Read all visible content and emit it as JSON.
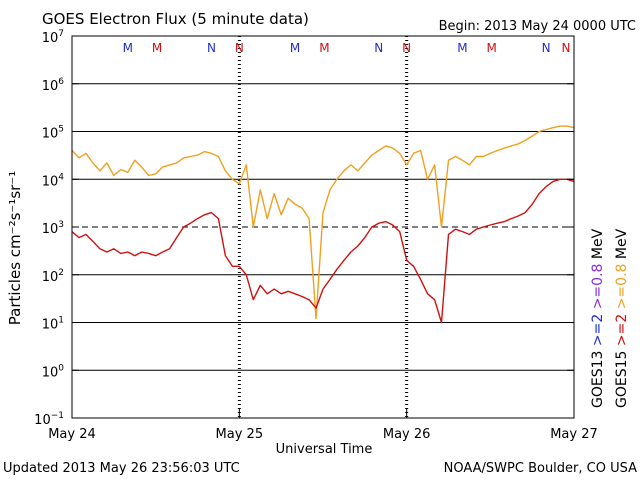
{
  "chart_data": {
    "type": "line",
    "title": "GOES Electron Flux (5 minute data)",
    "begin_label": "Begin: 2013 May 24 0000 UTC",
    "xlabel": "Universal Time",
    "ylabel": "Particles cm⁻²s⁻¹sr⁻¹",
    "y_scale": "log",
    "ylim": [
      0.1,
      10000000
    ],
    "y_ticks": [
      {
        "base": "10",
        "exp": "7"
      },
      {
        "base": "10",
        "exp": "6"
      },
      {
        "base": "10",
        "exp": "5"
      },
      {
        "base": "10",
        "exp": "4"
      },
      {
        "base": "10",
        "exp": "3"
      },
      {
        "base": "10",
        "exp": "2"
      },
      {
        "base": "10",
        "exp": "1"
      },
      {
        "base": "10",
        "exp": "0"
      },
      {
        "base": "10",
        "exp": "−1"
      }
    ],
    "xlim": [
      0,
      72
    ],
    "x_unit": "hours since 2013 May 24 0000 UTC",
    "x_ticks": [
      {
        "hour": 0,
        "label": "May 24"
      },
      {
        "hour": 24,
        "label": "May 25"
      },
      {
        "hour": 48,
        "label": "May 26"
      },
      {
        "hour": 72,
        "label": "May 27"
      }
    ],
    "threshold": 1000,
    "grid": "horizontal at decades",
    "markers": [
      {
        "hour": 8.0,
        "label": "M",
        "color": "#1f2fcc"
      },
      {
        "hour": 12.2,
        "label": "M",
        "color": "#d01010"
      },
      {
        "hour": 20.0,
        "label": "N",
        "color": "#1f2fcc"
      },
      {
        "hour": 24.0,
        "label": "N",
        "color": "#d01010"
      },
      {
        "hour": 32.0,
        "label": "M",
        "color": "#1f2fcc"
      },
      {
        "hour": 36.2,
        "label": "M",
        "color": "#d01010"
      },
      {
        "hour": 44.0,
        "label": "N",
        "color": "#1f2fcc"
      },
      {
        "hour": 48.0,
        "label": "N",
        "color": "#d01010"
      },
      {
        "hour": 56.0,
        "label": "M",
        "color": "#1f2fcc"
      },
      {
        "hour": 60.2,
        "label": "M",
        "color": "#d01010"
      },
      {
        "hour": 68.0,
        "label": "N",
        "color": "#1f2fcc"
      },
      {
        "hour": 72.0,
        "label": "N",
        "color": "#d01010"
      }
    ],
    "legend": {
      "placement": "right",
      "groups": [
        {
          "satellite": "GOES13",
          "color": "#000000",
          "entries": [
            {
              "text": ">=2",
              "color": "#1f2fcc"
            },
            {
              "text": ">=0.8",
              "color": "#8a2be2"
            },
            {
              "text": "MeV",
              "color": "#000000"
            }
          ]
        },
        {
          "satellite": "GOES15",
          "color": "#000000",
          "entries": [
            {
              "text": ">=2",
              "color": "#d01010"
            },
            {
              "text": ">=0.8",
              "color": "#f0a020"
            },
            {
              "text": "MeV",
              "color": "#000000"
            }
          ]
        }
      ]
    },
    "series": [
      {
        "name": ">=0.8 MeV",
        "color": "#f0a020",
        "x": [
          0,
          1,
          2,
          3,
          4,
          5,
          6,
          7,
          8,
          9,
          10,
          11,
          12,
          13,
          14,
          15,
          16,
          17,
          18,
          19,
          20,
          21,
          22,
          23,
          24,
          25,
          26,
          27,
          28,
          29,
          30,
          31,
          32,
          33,
          34,
          35,
          36,
          37,
          38,
          39,
          40,
          41,
          42,
          43,
          44,
          45,
          46,
          47,
          48,
          49,
          50,
          51,
          52,
          53,
          54,
          55,
          56,
          57,
          58,
          59,
          60,
          61,
          62,
          63,
          64,
          65,
          66,
          67,
          68,
          69,
          70,
          71,
          72
        ],
        "y": [
          40000,
          28000,
          35000,
          22000,
          15000,
          22000,
          12000,
          16000,
          14000,
          25000,
          18000,
          12000,
          13000,
          18000,
          20000,
          22000,
          28000,
          30000,
          32000,
          38000,
          35000,
          30000,
          15000,
          10000,
          8000,
          20000,
          1000,
          6000,
          1500,
          5000,
          1800,
          4000,
          3000,
          2500,
          1500,
          12,
          2000,
          6000,
          10000,
          15000,
          20000,
          15000,
          22000,
          32000,
          40000,
          50000,
          45000,
          35000,
          20000,
          35000,
          40000,
          10000,
          20000,
          1000,
          25000,
          30000,
          25000,
          20000,
          30000,
          30000,
          35000,
          40000,
          45000,
          50000,
          55000,
          65000,
          80000,
          100000,
          110000,
          120000,
          130000,
          130000,
          120000
        ]
      },
      {
        "name": ">=2 MeV",
        "color": "#d01010",
        "x": [
          0,
          1,
          2,
          3,
          4,
          5,
          6,
          7,
          8,
          9,
          10,
          11,
          12,
          13,
          14,
          15,
          16,
          17,
          18,
          19,
          20,
          21,
          22,
          23,
          24,
          25,
          26,
          27,
          28,
          29,
          30,
          31,
          32,
          33,
          34,
          35,
          36,
          37,
          38,
          39,
          40,
          41,
          42,
          43,
          44,
          45,
          46,
          47,
          48,
          49,
          50,
          51,
          52,
          53,
          54,
          55,
          56,
          57,
          58,
          59,
          60,
          61,
          62,
          63,
          64,
          65,
          66,
          67,
          68,
          69,
          70,
          71,
          72
        ],
        "y": [
          800,
          600,
          700,
          500,
          350,
          300,
          350,
          280,
          300,
          250,
          300,
          280,
          250,
          300,
          350,
          600,
          1000,
          1200,
          1500,
          1800,
          2000,
          1500,
          250,
          150,
          150,
          100,
          30,
          60,
          40,
          50,
          40,
          45,
          40,
          35,
          30,
          20,
          50,
          80,
          130,
          200,
          300,
          400,
          600,
          1000,
          1200,
          1300,
          1100,
          800,
          200,
          150,
          80,
          40,
          30,
          10,
          700,
          900,
          800,
          700,
          900,
          1000,
          1100,
          1200,
          1300,
          1500,
          1700,
          2000,
          3000,
          5000,
          7000,
          9000,
          10000,
          10000,
          9000
        ]
      }
    ]
  },
  "footer": {
    "updated": "Updated 2013 May 26 23:56:03 UTC",
    "credit": "NOAA/SWPC Boulder, CO USA"
  }
}
